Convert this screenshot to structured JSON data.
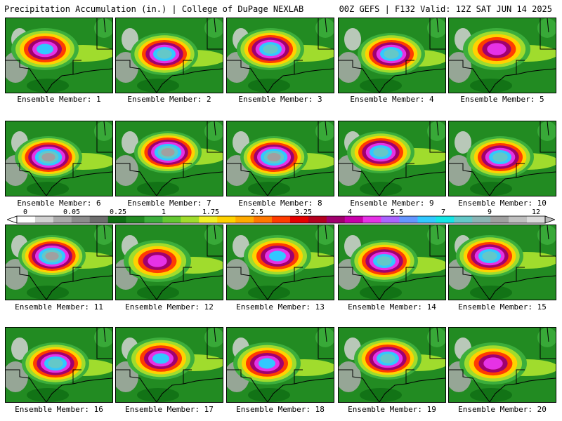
{
  "header": {
    "left": "Precipitation Accumulation (in.) | College of DuPage NEXLAB",
    "right": "00Z GEFS | F132 Valid: 12Z SAT JUN 14 2025"
  },
  "members": [
    {
      "label": "Ensemble Member: 1",
      "peak": 5.5
    },
    {
      "label": "Ensemble Member: 2",
      "peak": 7
    },
    {
      "label": "Ensemble Member: 3",
      "peak": 7
    },
    {
      "label": "Ensemble Member: 4",
      "peak": 7
    },
    {
      "label": "Ensemble Member: 5",
      "peak": 4
    },
    {
      "label": "Ensemble Member: 6",
      "peak": 9
    },
    {
      "label": "Ensemble Member: 7",
      "peak": 9
    },
    {
      "label": "Ensemble Member: 8",
      "peak": 9
    },
    {
      "label": "Ensemble Member: 9",
      "peak": 7
    },
    {
      "label": "Ensemble Member: 10",
      "peak": 7
    },
    {
      "label": "Ensemble Member: 11",
      "peak": 9
    },
    {
      "label": "Ensemble Member: 12",
      "peak": 4
    },
    {
      "label": "Ensemble Member: 13",
      "peak": 5.5
    },
    {
      "label": "Ensemble Member: 14",
      "peak": 7
    },
    {
      "label": "Ensemble Member: 15",
      "peak": 7
    },
    {
      "label": "Ensemble Member: 16",
      "peak": 7
    },
    {
      "label": "Ensemble Member: 17",
      "peak": 5.5
    },
    {
      "label": "Ensemble Member: 18",
      "peak": 5.5
    },
    {
      "label": "Ensemble Member: 19",
      "peak": 7
    },
    {
      "label": "Ensemble Member: 20",
      "peak": 4
    }
  ],
  "colorbar": {
    "tick_labels": [
      "0",
      "0.05",
      "0.25",
      "1",
      "1.75",
      "2.5",
      "3.25",
      "4",
      "5.5",
      "7",
      "9",
      "12"
    ],
    "colors": [
      "#ffffff",
      "#d2d2d2",
      "#aaaaaa",
      "#8c8c8c",
      "#6e6e6e",
      "#0f6e14",
      "#228b22",
      "#3cae3c",
      "#64c832",
      "#a0dc2d",
      "#f0f028",
      "#ffd200",
      "#ffaa00",
      "#ff7800",
      "#ff3c00",
      "#e60000",
      "#b4001e",
      "#a0006e",
      "#c800aa",
      "#e632e6",
      "#aa64ff",
      "#6496ff",
      "#32c8ff",
      "#14e6e6",
      "#64c8c8",
      "#8cb4b4",
      "#a0a0a0",
      "#c0c0c0",
      "#dcdcdc"
    ]
  }
}
